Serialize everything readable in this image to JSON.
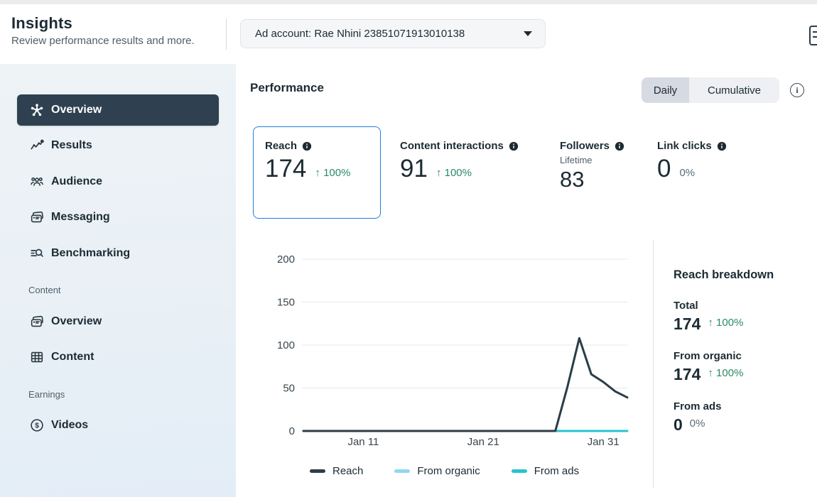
{
  "header": {
    "title": "Insights",
    "subtitle": "Review performance results and more.",
    "account_selector_label": "Ad account: Rae Nhini 23851071913010138"
  },
  "sidebar": {
    "main_items": [
      {
        "label": "Overview",
        "icon": "overview-hub-icon",
        "active": true
      },
      {
        "label": "Results",
        "icon": "results-trend-icon",
        "active": false
      },
      {
        "label": "Audience",
        "icon": "audience-people-icon",
        "active": false
      },
      {
        "label": "Messaging",
        "icon": "messaging-cards-icon",
        "active": false
      },
      {
        "label": "Benchmarking",
        "icon": "benchmarking-search-icon",
        "active": false
      }
    ],
    "content_section": {
      "label": "Content",
      "items": [
        {
          "label": "Overview",
          "icon": "content-cards-icon"
        },
        {
          "label": "Content",
          "icon": "content-table-icon"
        }
      ]
    },
    "earnings_section": {
      "label": "Earnings",
      "items": [
        {
          "label": "Videos",
          "icon": "earnings-dollar-icon"
        }
      ]
    }
  },
  "performance": {
    "title": "Performance",
    "toggle": {
      "options": [
        "Daily",
        "Cumulative"
      ],
      "selected": "Daily"
    }
  },
  "metrics": {
    "reach": {
      "label": "Reach",
      "value": "174",
      "arrow": "↑",
      "change": "100%",
      "selected": true
    },
    "content_interactions": {
      "label": "Content interactions",
      "value": "91",
      "arrow": "↑",
      "change": "100%"
    },
    "followers": {
      "label": "Followers",
      "sublabel": "Lifetime",
      "value": "83"
    },
    "link_clicks": {
      "label": "Link clicks",
      "value": "0",
      "change": "0%"
    }
  },
  "breakdown": {
    "title": "Reach breakdown",
    "rows": [
      {
        "label": "Total",
        "value": "174",
        "arrow": "↑",
        "change": "100%",
        "positive": true
      },
      {
        "label": "From organic",
        "value": "174",
        "arrow": "↑",
        "change": "100%",
        "positive": true
      },
      {
        "label": "From ads",
        "value": "0",
        "arrow": "",
        "change": "0%",
        "positive": false
      }
    ]
  },
  "chart_data": {
    "type": "line",
    "title": "Performance — Daily Reach",
    "x": [
      "Jan 6",
      "Jan 7",
      "Jan 8",
      "Jan 9",
      "Jan 10",
      "Jan 11",
      "Jan 12",
      "Jan 13",
      "Jan 14",
      "Jan 15",
      "Jan 16",
      "Jan 17",
      "Jan 18",
      "Jan 19",
      "Jan 20",
      "Jan 21",
      "Jan 22",
      "Jan 23",
      "Jan 24",
      "Jan 25",
      "Jan 26",
      "Jan 27",
      "Jan 28",
      "Jan 29",
      "Jan 30",
      "Jan 31",
      "Feb 1",
      "Feb 2"
    ],
    "x_tick_labels": [
      "Jan 11",
      "Jan 21",
      "Jan 31"
    ],
    "y_ticks": [
      0,
      50,
      100,
      150,
      200
    ],
    "ylim": [
      0,
      200
    ],
    "grid": true,
    "legend_position": "bottom",
    "series": [
      {
        "name": "Reach",
        "color": "#2e3d47",
        "values": [
          0,
          0,
          0,
          0,
          0,
          0,
          0,
          0,
          0,
          0,
          0,
          0,
          0,
          0,
          0,
          0,
          0,
          0,
          0,
          0,
          0,
          0,
          51,
          108,
          66,
          57,
          46,
          39
        ]
      },
      {
        "name": "From organic",
        "color": "#8ed9f2",
        "values": [
          0,
          0,
          0,
          0,
          0,
          0,
          0,
          0,
          0,
          0,
          0,
          0,
          0,
          0,
          0,
          0,
          0,
          0,
          0,
          0,
          0,
          0,
          51,
          108,
          66,
          57,
          46,
          39
        ]
      },
      {
        "name": "From ads",
        "color": "#26c4cd",
        "values": [
          0,
          0,
          0,
          0,
          0,
          0,
          0,
          0,
          0,
          0,
          0,
          0,
          0,
          0,
          0,
          0,
          0,
          0,
          0,
          0,
          0,
          0,
          0,
          0,
          0,
          0,
          0,
          0
        ]
      }
    ]
  },
  "colors": {
    "accent_blue": "#2180e2",
    "positive_green": "#2c8a64",
    "active_item_bg": "#2f4150"
  }
}
